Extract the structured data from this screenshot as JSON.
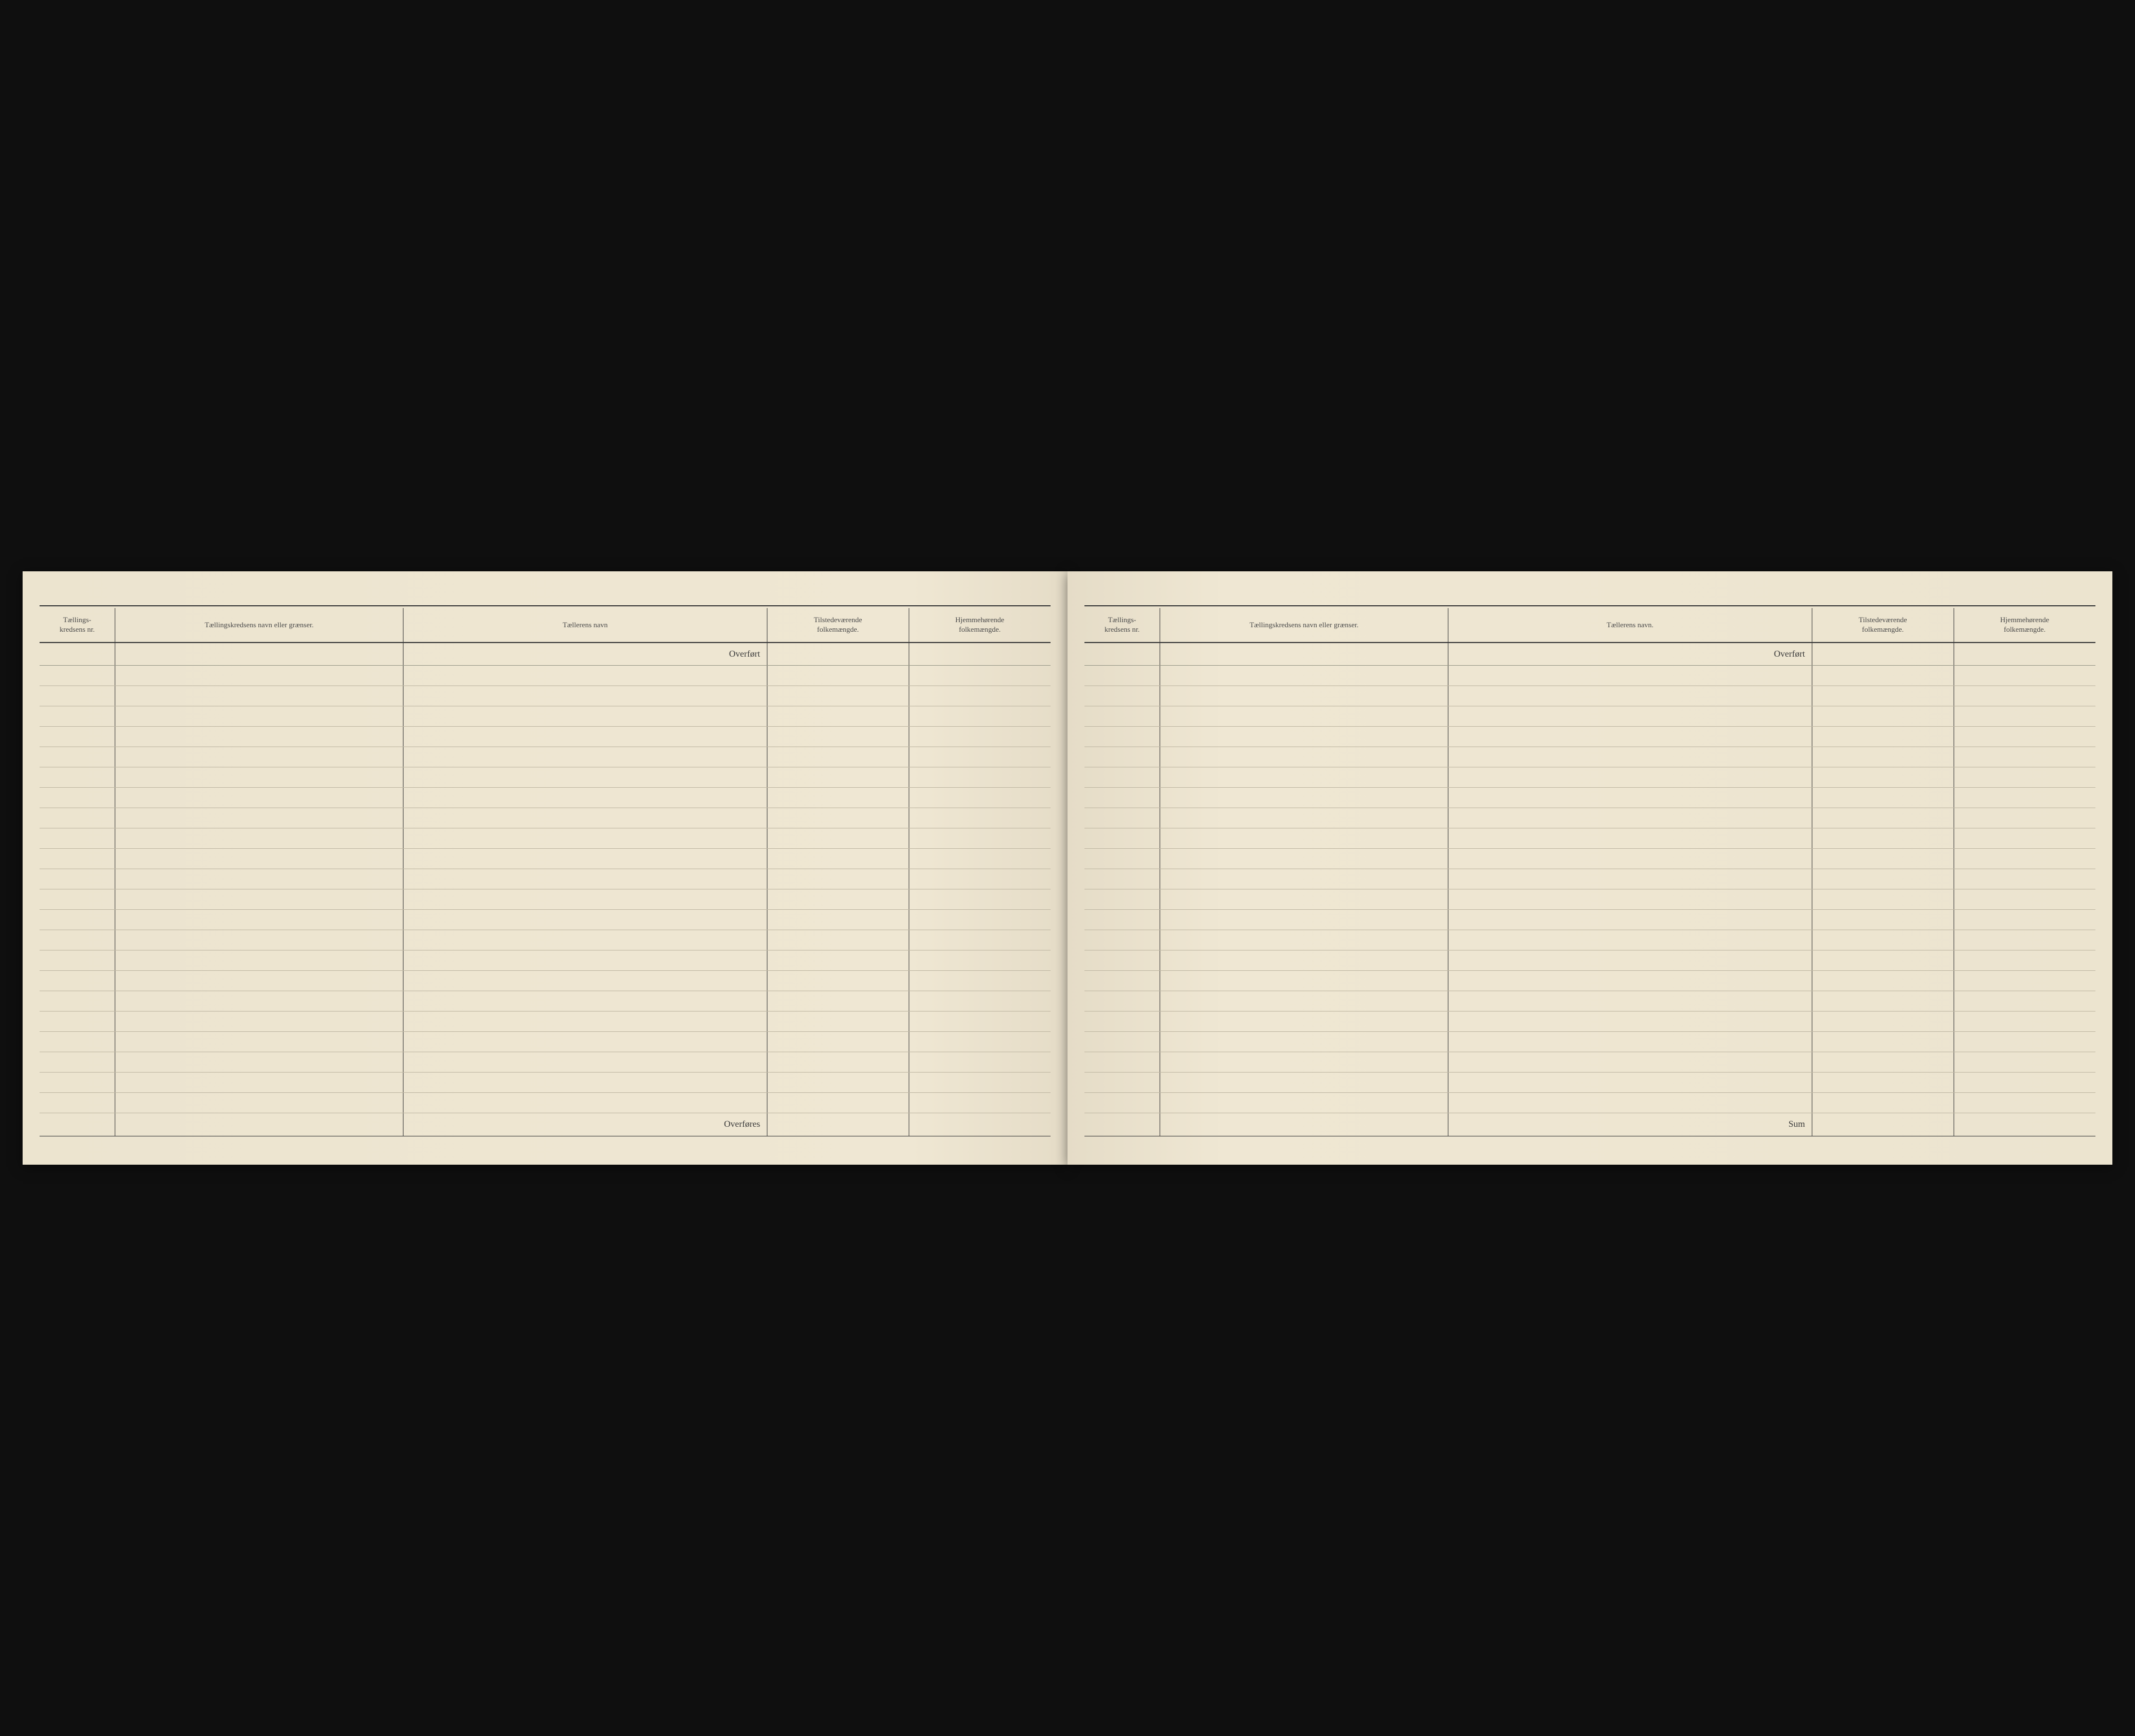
{
  "document": {
    "type": "census-ledger-spread",
    "language": "norwegian",
    "background_color": "#ede5d0",
    "rule_color": "#3a3a3a",
    "row_line_color": "#c0b8a4"
  },
  "columns": {
    "col1": {
      "header_line1": "Tællings-",
      "header_line2": "kredsens nr.",
      "width_pct": 7.5
    },
    "col2": {
      "header": "Tællingskredsens navn eller grænser.",
      "width_pct": 28.5
    },
    "col3": {
      "header_left": "Tællerens navn",
      "header_right": "Tællerens navn.",
      "width_pct": 36
    },
    "col4": {
      "header_line1": "Tilstedeværende",
      "header_line2": "folkemængde.",
      "width_pct": 14
    },
    "col5": {
      "header_line1": "Hjemmehørende",
      "header_line2": "folkemængde.",
      "width_pct": 14
    }
  },
  "labels": {
    "carried_forward": "Overført",
    "carry_over": "Overføres",
    "sum": "Sum"
  },
  "layout": {
    "data_row_count": 22,
    "header_font_size": 13,
    "label_font_size": 16
  },
  "left_page": {
    "top_label": "Overført",
    "bottom_label": "Overføres",
    "rows": []
  },
  "right_page": {
    "top_label": "Overført",
    "bottom_label": "Sum",
    "rows": []
  }
}
